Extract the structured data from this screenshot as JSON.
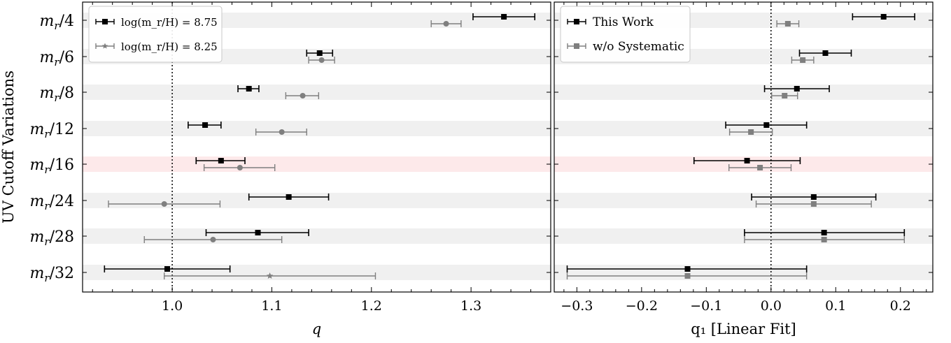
{
  "y_title": "UV Cutoff Variations",
  "rows": [
    {
      "label_main": "m",
      "label_sub": "r",
      "label_tail": "/4",
      "highlight": false
    },
    {
      "label_main": "m",
      "label_sub": "r",
      "label_tail": "/6",
      "highlight": false
    },
    {
      "label_main": "m",
      "label_sub": "r",
      "label_tail": "/8",
      "highlight": false
    },
    {
      "label_main": "m",
      "label_sub": "r",
      "label_tail": "/12",
      "highlight": false
    },
    {
      "label_main": "m",
      "label_sub": "r",
      "label_tail": "/16",
      "highlight": true
    },
    {
      "label_main": "m",
      "label_sub": "r",
      "label_tail": "/24",
      "highlight": false
    },
    {
      "label_main": "m",
      "label_sub": "r",
      "label_tail": "/28",
      "highlight": false
    },
    {
      "label_main": "m",
      "label_sub": "r",
      "label_tail": "/32",
      "highlight": false
    }
  ],
  "colors": {
    "black": "#000000",
    "gray": "#7f7f7f",
    "band": "#f0f0f0",
    "highlight_band": "#fde9ea"
  },
  "chart_data": [
    {
      "type": "scatter",
      "xlabel": "q",
      "xlim": [
        0.91,
        1.38
      ],
      "xticks": [
        1.0,
        1.1,
        1.2,
        1.3
      ],
      "xtick_labels": [
        "1.0",
        "1.1",
        "1.2",
        "1.3"
      ],
      "reference_line": 1.0,
      "legend": {
        "position": "top-left",
        "entries": [
          "log(m_r/H) = 8.75",
          "log(m_r/H) = 8.25"
        ]
      },
      "series": [
        {
          "name": "log(m_r/H) = 8.75",
          "color": "#000000",
          "marker": "square",
          "values": [
            1.333,
            1.148,
            1.077,
            1.033,
            1.049,
            1.117,
            1.086,
            0.995
          ],
          "err_low": [
            0.031,
            0.013,
            0.011,
            0.017,
            0.025,
            0.04,
            0.052,
            0.063
          ],
          "err_high": [
            0.031,
            0.013,
            0.01,
            0.016,
            0.024,
            0.04,
            0.051,
            0.063
          ]
        },
        {
          "name": "log(m_r/H) = 8.25",
          "color": "#7f7f7f",
          "marker": "circle",
          "values": [
            1.275,
            1.15,
            1.131,
            1.11,
            1.068,
            0.992,
            1.041,
            1.098
          ],
          "err_low": [
            0.015,
            0.013,
            0.017,
            0.026,
            0.036,
            0.056,
            0.069,
            0.106
          ],
          "err_high": [
            0.015,
            0.013,
            0.016,
            0.025,
            0.035,
            0.056,
            0.069,
            0.106
          ],
          "star_rows": [
            7
          ]
        }
      ]
    },
    {
      "type": "scatter",
      "xlabel": "q₁ [Linear Fit]",
      "xlim": [
        -0.335,
        0.25
      ],
      "xticks": [
        -0.3,
        -0.2,
        -0.1,
        0.0,
        0.1,
        0.2
      ],
      "xtick_labels": [
        "−0.3",
        "−0.2",
        "−0.1",
        "0.0",
        "0.1",
        "0.2"
      ],
      "reference_line": 0.0,
      "legend": {
        "position": "top-left",
        "entries": [
          "This Work",
          "w/o Systematic"
        ]
      },
      "series": [
        {
          "name": "This Work",
          "color": "#000000",
          "marker": "square",
          "values": [
            0.174,
            0.084,
            0.04,
            -0.007,
            -0.037,
            0.066,
            0.082,
            -0.129
          ],
          "err_low": [
            0.048,
            0.04,
            0.05,
            0.063,
            0.082,
            0.096,
            0.123,
            0.186
          ],
          "err_high": [
            0.048,
            0.04,
            0.05,
            0.062,
            0.082,
            0.096,
            0.124,
            0.184
          ]
        },
        {
          "name": "w/o Systematic",
          "color": "#7f7f7f",
          "marker": "square",
          "values": [
            0.026,
            0.049,
            0.021,
            -0.031,
            -0.017,
            0.066,
            0.082,
            -0.129
          ],
          "err_low": [
            0.017,
            0.017,
            0.02,
            0.033,
            0.048,
            0.089,
            0.123,
            0.186
          ],
          "err_high": [
            0.017,
            0.017,
            0.02,
            0.033,
            0.048,
            0.089,
            0.124,
            0.184
          ]
        }
      ]
    }
  ]
}
